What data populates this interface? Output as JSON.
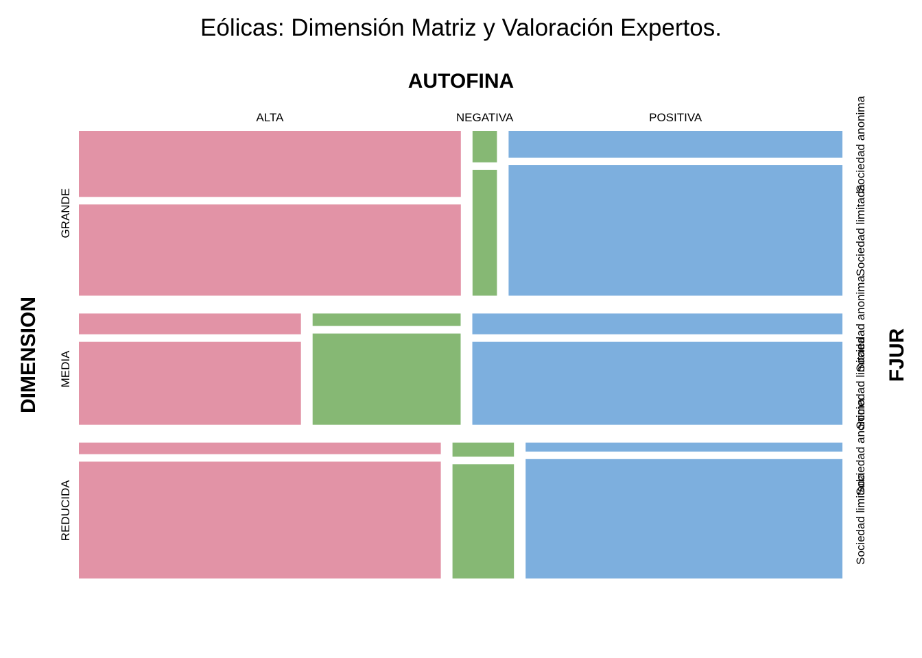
{
  "chart_data": {
    "type": "mosaic",
    "title": "Eólicas: Dimensión Matriz y Valoración Expertos.",
    "column_variable": "AUTOFINA",
    "row_variable": "DIMENSION",
    "split_variable": "FJUR",
    "row_levels": [
      "GRANDE",
      "MEDIA",
      "REDUCIDA"
    ],
    "row_proportions": [
      0.4,
      0.27,
      0.33
    ],
    "column_levels": [
      "ALTA",
      "NEGATIVA",
      "POSITIVA"
    ],
    "column_level_colors": [
      "#E293A6",
      "#86B874",
      "#7DAFDE"
    ],
    "split_levels": [
      "Sociedad anonima",
      "Sociedad limitada"
    ],
    "cells": [
      {
        "row": "GRANDE",
        "column_shares": [
          0.516,
          0.033,
          0.451
        ],
        "split_shares": [
          [
            0.42,
            0.58
          ],
          [
            0.2,
            0.8
          ],
          [
            0.17,
            0.83
          ]
        ]
      },
      {
        "row": "MEDIA",
        "column_shares": [
          0.3,
          0.2,
          0.5
        ],
        "split_shares": [
          [
            0.2,
            0.8
          ],
          [
            0.12,
            0.88
          ],
          [
            0.2,
            0.8
          ]
        ]
      },
      {
        "row": "REDUCIDA",
        "column_shares": [
          0.489,
          0.083,
          0.428
        ],
        "split_shares": [
          [
            0.09,
            0.91
          ],
          [
            0.11,
            0.89
          ],
          [
            0.07,
            0.93
          ]
        ]
      }
    ]
  }
}
